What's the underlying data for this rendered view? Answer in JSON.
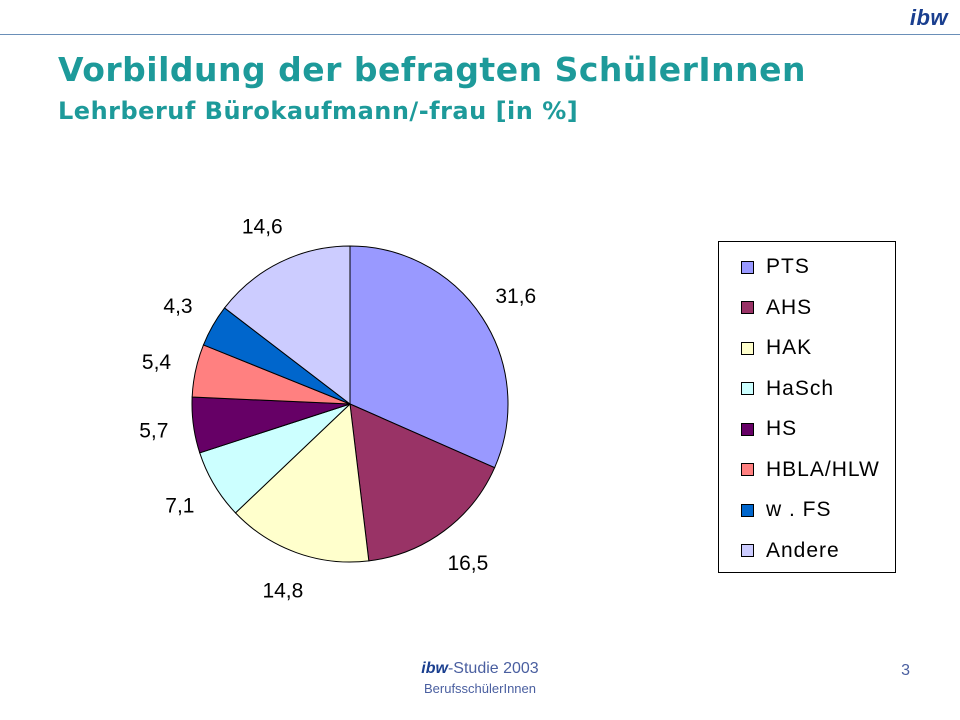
{
  "header": {
    "logo": "ibw",
    "title": "Vorbildung der befragten SchülerInnen",
    "subtitle": "Lehrberuf Bürokaufmann/-frau [in %]"
  },
  "chart_data": {
    "type": "pie",
    "categories": [
      "PTS",
      "AHS",
      "HAK",
      "HaSch",
      "HS",
      "HBLA/HLW",
      "w . FS",
      "Andere"
    ],
    "values": [
      31.6,
      16.5,
      14.8,
      7.1,
      5.7,
      5.4,
      4.3,
      14.6
    ],
    "value_labels": [
      "31,6",
      "16,5",
      "14,8",
      "7,1",
      "5,7",
      "5,4",
      "4,3",
      "14,6"
    ],
    "colors": [
      "#9999ff",
      "#993366",
      "#ffffcc",
      "#ccffff",
      "#660066",
      "#ff8080",
      "#0066cc",
      "#ccccff"
    ],
    "legend": "right",
    "start": "12 o'clock",
    "direction": "clockwise"
  },
  "footer": {
    "brand": "ibw",
    "study": "-Studie 2003",
    "subline": "BerufsschülerInnen",
    "page_number": "3"
  }
}
